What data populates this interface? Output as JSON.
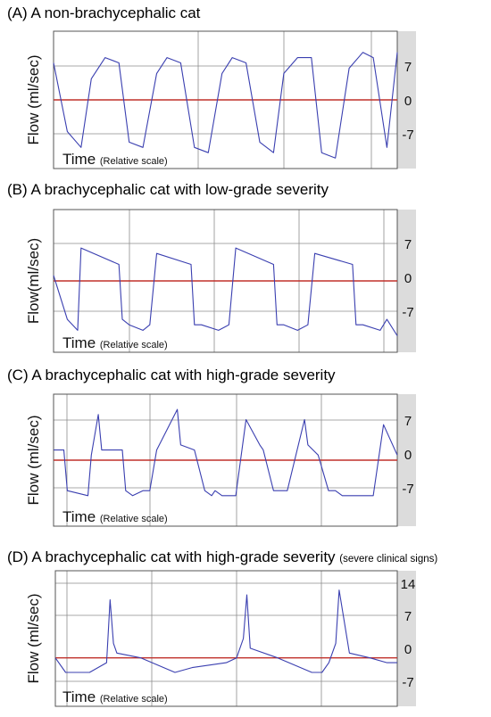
{
  "time_label": "Time",
  "time_sublabel": "(Relative scale)",
  "chart_data": [
    {
      "type": "line",
      "title": "(A) A non-brachycephalic cat",
      "subtitle": "",
      "ylabel": "Flow (ml/sec)",
      "yticks": [
        "7",
        "0",
        "-7"
      ],
      "ylim": [
        -13,
        13
      ],
      "x": [
        0,
        4,
        8,
        11,
        15,
        19,
        22,
        26,
        30,
        33,
        37,
        41,
        45,
        49,
        52,
        56,
        60,
        64,
        67,
        71,
        75,
        78,
        82,
        86,
        90,
        93,
        97,
        100
      ],
      "series": [
        {
          "values": [
            7,
            -6,
            -9,
            4,
            8,
            7,
            -8,
            -9,
            5,
            8,
            7,
            -9,
            -10,
            5,
            8,
            7,
            -8,
            -10,
            5,
            8,
            8,
            -10,
            -11,
            6,
            9,
            8,
            -9,
            9
          ]
        }
      ]
    },
    {
      "type": "line",
      "title": "(B) A brachycephalic cat with low-grade severity",
      "subtitle": "",
      "ylabel": "Flow(ml/sec)",
      "yticks": [
        "7",
        "0",
        "-7"
      ],
      "ylim": [
        -13,
        13
      ],
      "x": [
        0,
        4,
        7,
        8,
        19,
        20,
        22,
        26,
        28,
        30,
        40,
        41,
        43,
        48,
        51,
        53,
        64,
        65,
        67,
        71,
        74,
        76,
        87,
        88,
        90,
        95,
        97,
        100
      ],
      "series": [
        {
          "values": [
            1,
            -7,
            -9,
            6,
            3,
            -7,
            -8,
            -9,
            -8,
            5,
            3,
            -8,
            -8,
            -9,
            -8,
            6,
            3,
            -8,
            -8,
            -9,
            -8,
            5,
            3,
            -8,
            -8,
            -9,
            -7,
            -10
          ]
        }
      ]
    },
    {
      "type": "line",
      "title": "(C) A brachycephalic cat with high-grade severity",
      "subtitle": "",
      "ylabel": "Flow (ml/sec)",
      "yticks": [
        "7",
        "0",
        "-7"
      ],
      "ylim": [
        -13,
        13
      ],
      "x": [
        0,
        3,
        4,
        10,
        11,
        13,
        14,
        20,
        21,
        23,
        26,
        28,
        30,
        36,
        37,
        41,
        44,
        46,
        47,
        49,
        53,
        56,
        60,
        61,
        64,
        66,
        68,
        73,
        74,
        77,
        80,
        82,
        84,
        89,
        90,
        93,
        96,
        100
      ],
      "series": [
        {
          "values": [
            2,
            2,
            -6,
            -7,
            1,
            9,
            2,
            2,
            -6,
            -7,
            -6,
            -6,
            2,
            10,
            3,
            2,
            -6,
            -7,
            -6,
            -7,
            -7,
            8,
            3,
            2,
            -6,
            -6,
            -6,
            8,
            3,
            1,
            -6,
            -6,
            -7,
            -7,
            -7,
            -7,
            7,
            1
          ]
        }
      ]
    },
    {
      "type": "line",
      "title": "(D) A brachycephalic cat with high-grade severity",
      "subtitle": "(severe clinical signs)",
      "ylabel": "Flow (ml/sec)",
      "yticks": [
        "14",
        "7",
        "0",
        "-7"
      ],
      "ylim": [
        -10,
        18
      ],
      "x": [
        0,
        3,
        10,
        15,
        16,
        17,
        18,
        25,
        35,
        40,
        50,
        53,
        55,
        56,
        57,
        65,
        75,
        78,
        80,
        82,
        83,
        86,
        92,
        97,
        100
      ],
      "series": [
        {
          "values": [
            0,
            -3,
            -3,
            -1,
            12,
            3,
            1,
            0,
            -3,
            -2,
            -1,
            0,
            4,
            13,
            2,
            0,
            -3,
            -3,
            -1,
            3,
            14,
            1,
            0,
            -1,
            -1
          ]
        }
      ]
    }
  ]
}
